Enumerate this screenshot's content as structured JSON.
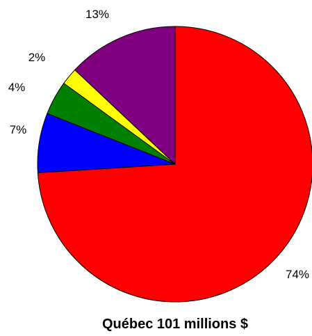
{
  "chart_data": {
    "type": "pie",
    "title": "Québec 101 millions $",
    "slices": [
      {
        "value": 74,
        "label": "74%",
        "color": "#ff0000"
      },
      {
        "value": 7,
        "label": "7%",
        "color": "#0000ff"
      },
      {
        "value": 4,
        "label": "4%",
        "color": "#008000"
      },
      {
        "value": 2,
        "label": "2%",
        "color": "#ffff00"
      },
      {
        "value": 13,
        "label": "13%",
        "color": "#800080"
      }
    ]
  }
}
